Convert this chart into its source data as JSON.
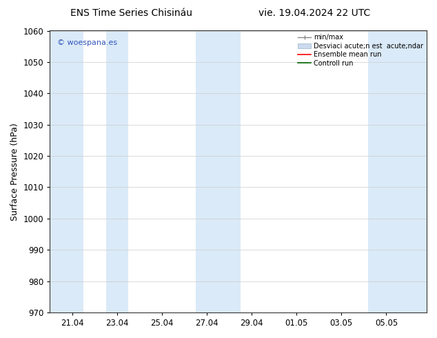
{
  "title_left": "ENS Time Series Chisináu",
  "title_right": "vie. 19.04.2024 22 UTC",
  "ylabel": "Surface Pressure (hPa)",
  "ylim": [
    970,
    1060
  ],
  "yticks": [
    970,
    980,
    990,
    1000,
    1010,
    1020,
    1030,
    1040,
    1050,
    1060
  ],
  "x_tick_labels": [
    "21.04",
    "23.04",
    "25.04",
    "27.04",
    "29.04",
    "01.05",
    "03.05",
    "05.05"
  ],
  "x_tick_positions": [
    0,
    2,
    4,
    6,
    8,
    10,
    12,
    14
  ],
  "x_min": -1.0,
  "x_max": 15.8,
  "shaded_bands": [
    {
      "x_start": -1.0,
      "x_end": 0.5
    },
    {
      "x_start": 1.5,
      "x_end": 2.5
    },
    {
      "x_start": 5.5,
      "x_end": 7.5
    },
    {
      "x_start": 13.2,
      "x_end": 15.8
    }
  ],
  "band_color": "#daeaf8",
  "watermark_text": "© woespana.es",
  "watermark_color": "#3355bb",
  "legend_labels": [
    "min/max",
    "Desviaci acute;n est  acute;ndar",
    "Ensemble mean run",
    "Controll run"
  ],
  "legend_colors": [
    "#999999",
    "#ccdaee",
    "red",
    "green"
  ],
  "background_color": "#ffffff",
  "plot_bg_color": "#ffffff",
  "spine_color": "#333333",
  "title_fontsize": 10,
  "label_fontsize": 9,
  "tick_fontsize": 8.5
}
